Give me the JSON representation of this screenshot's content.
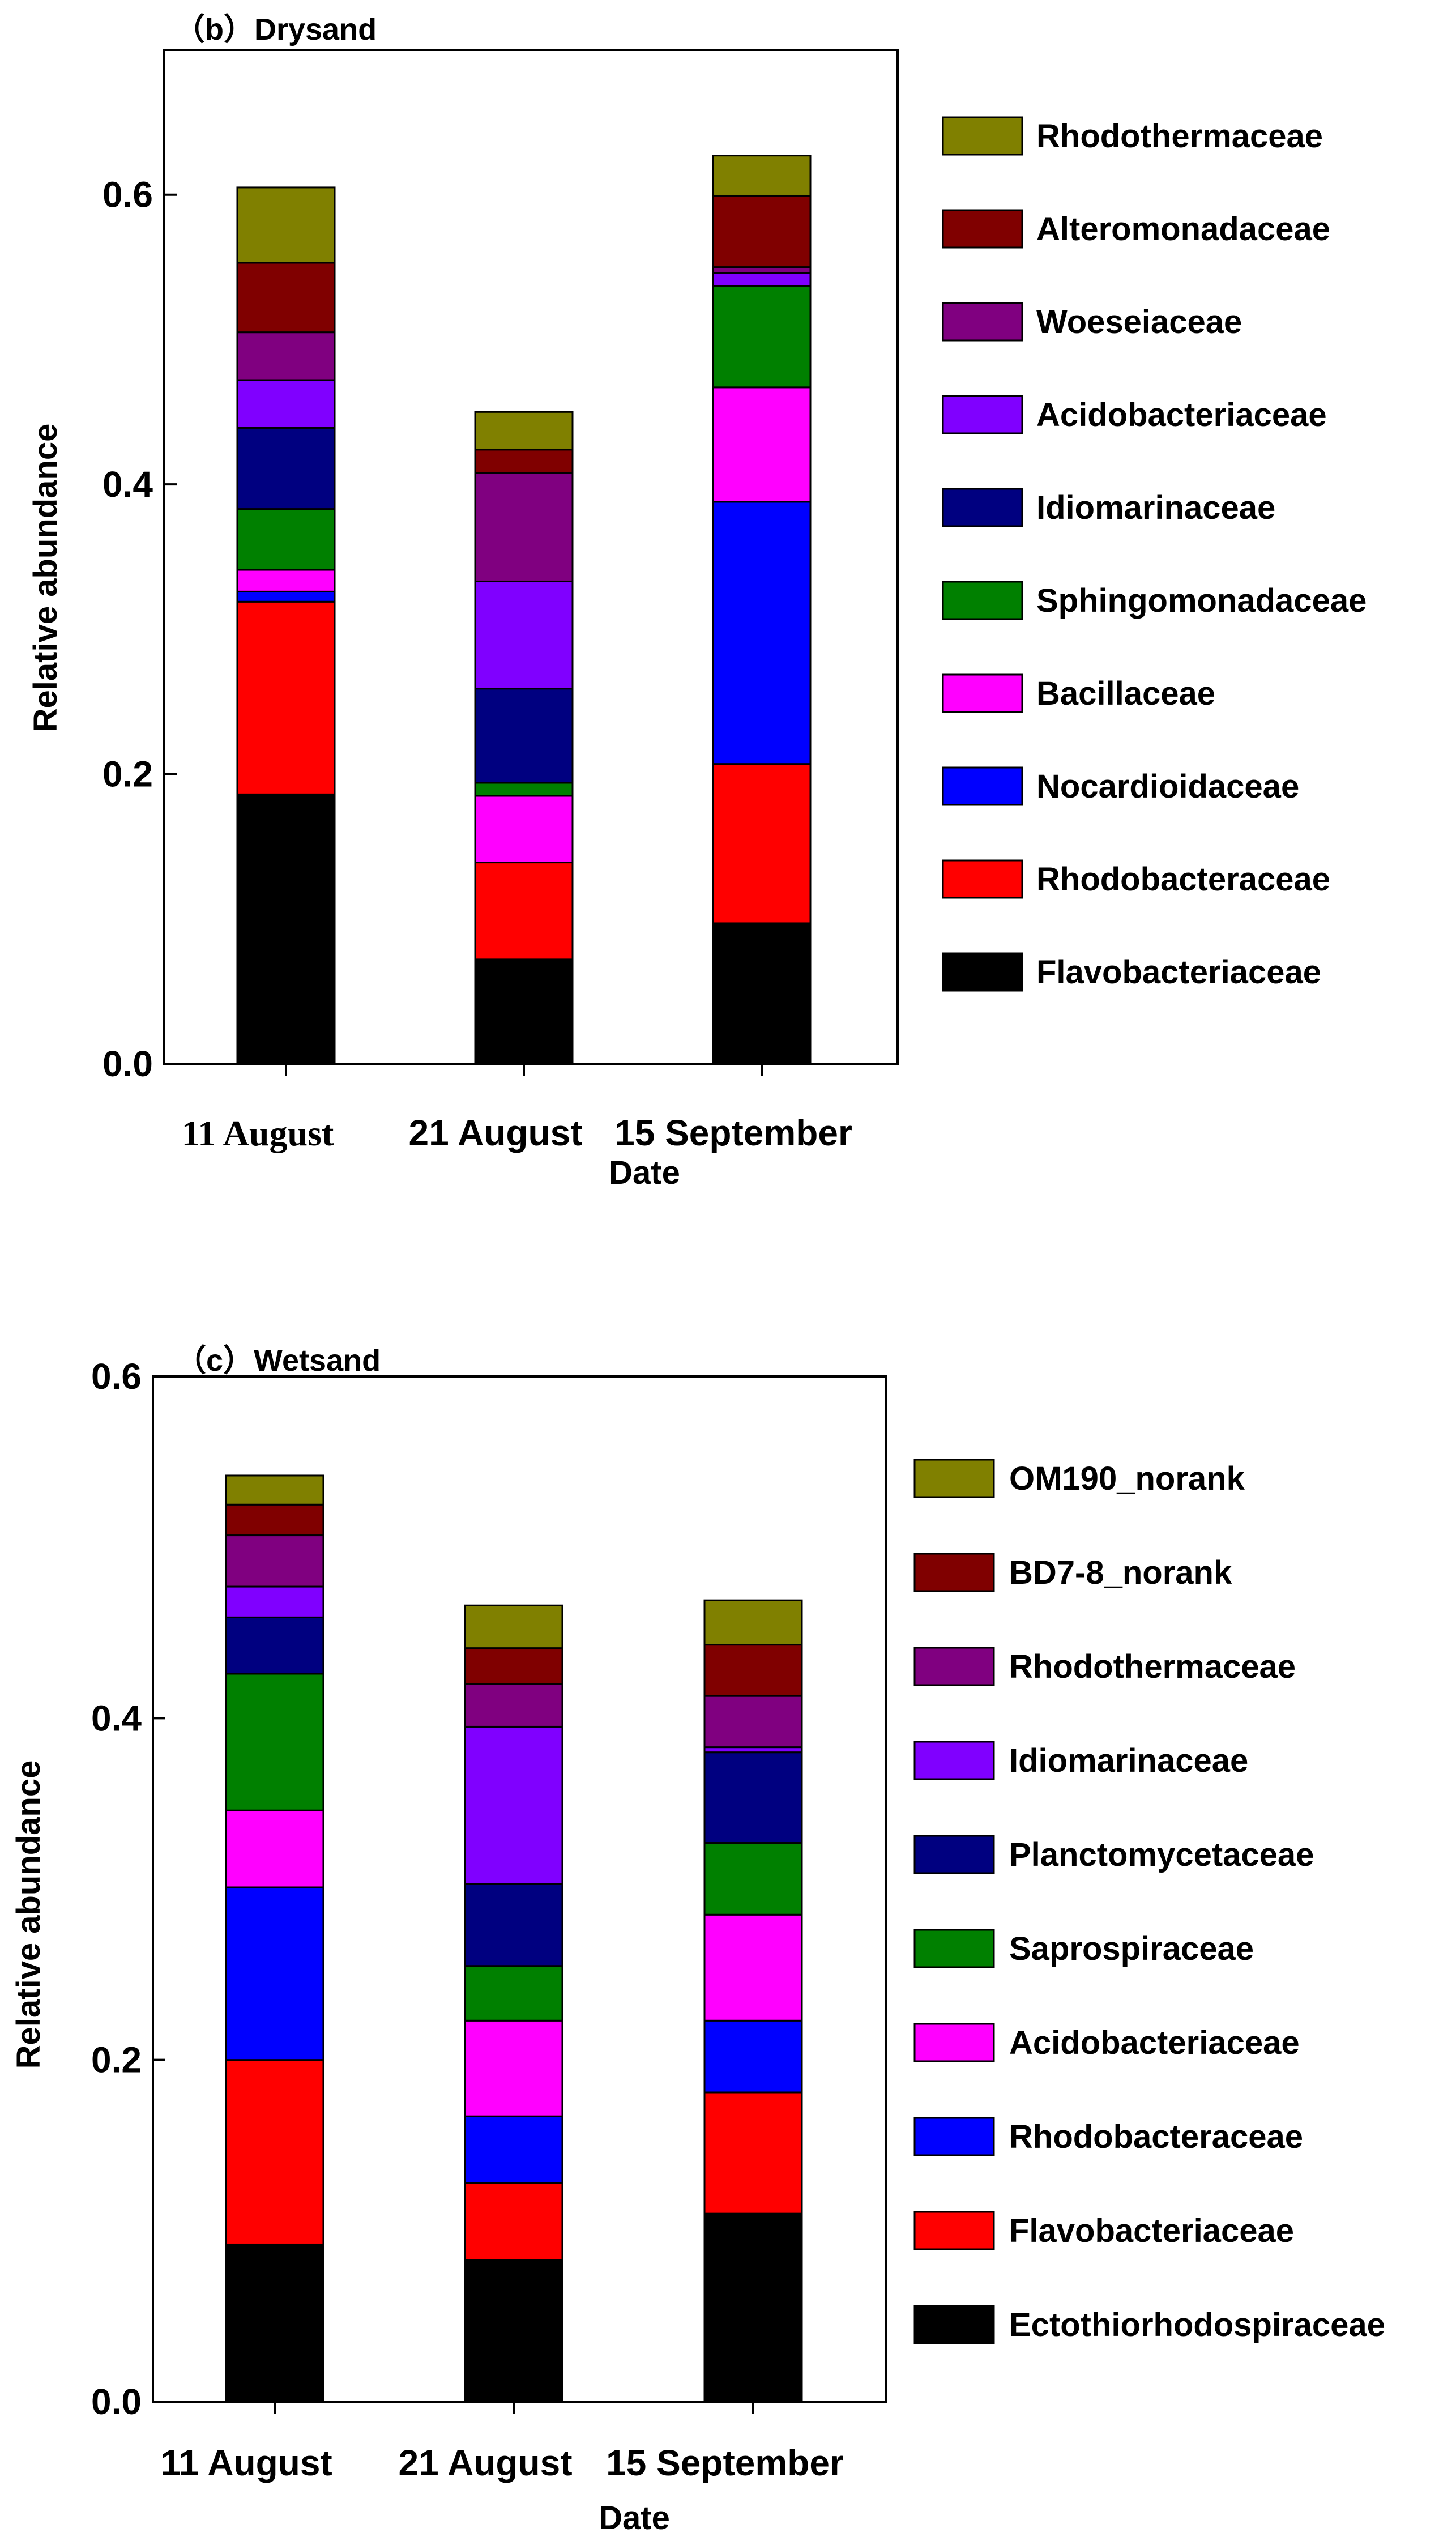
{
  "chart_data": [
    {
      "type": "bar",
      "stacked": true,
      "title": "（b）Drysand",
      "xlabel": "Date",
      "ylabel": "Relative abundance",
      "ylim": [
        0,
        0.7
      ],
      "yticks": [
        "0.0",
        "0.2",
        "0.4",
        "0.6"
      ],
      "categories": [
        "11 August",
        "21 August",
        "15 September"
      ],
      "series": [
        {
          "name": "Flavobacteriaceae",
          "color": "#000000",
          "values": [
            0.186,
            0.072,
            0.097
          ]
        },
        {
          "name": "Rhodobacteraceae",
          "color": "#ff0000",
          "values": [
            0.133,
            0.067,
            0.11
          ]
        },
        {
          "name": "Nocardioidaceae",
          "color": "#0000ff",
          "values": [
            0.007,
            0.0,
            0.181
          ]
        },
        {
          "name": "Bacillaceae",
          "color": "#ff00ff",
          "values": [
            0.015,
            0.046,
            0.079
          ]
        },
        {
          "name": "Sphingomonadaceae",
          "color": "#008000",
          "values": [
            0.042,
            0.009,
            0.07
          ]
        },
        {
          "name": "Idiomarinaceae",
          "color": "#000080",
          "values": [
            0.056,
            0.065,
            0.0
          ]
        },
        {
          "name": "Acidobacteriaceae",
          "color": "#8000ff",
          "values": [
            0.033,
            0.074,
            0.009
          ]
        },
        {
          "name": "Woeseiaceae",
          "color": "#800080",
          "values": [
            0.033,
            0.075,
            0.004
          ]
        },
        {
          "name": "Alteromonadaceae",
          "color": "#800000",
          "values": [
            0.048,
            0.016,
            0.049
          ]
        },
        {
          "name": "Rhodothermaceae",
          "color": "#808000",
          "values": [
            0.052,
            0.026,
            0.028
          ]
        }
      ]
    },
    {
      "type": "bar",
      "stacked": true,
      "title": "（c）Wetsand",
      "xlabel": "Date",
      "ylabel": "Relative abundance",
      "ylim": [
        0,
        0.6
      ],
      "yticks": [
        "0.0",
        "0.2",
        "0.4",
        "0.6"
      ],
      "categories": [
        "11 August",
        "21 August",
        "15 September"
      ],
      "series": [
        {
          "name": "Ectothiorhodospiraceae",
          "color": "#000000",
          "values": [
            0.092,
            0.083,
            0.11
          ]
        },
        {
          "name": "Flavobacteriaceae",
          "color": "#ff0000",
          "values": [
            0.108,
            0.045,
            0.071
          ]
        },
        {
          "name": "Rhodobacteraceae",
          "color": "#0000ff",
          "values": [
            0.101,
            0.039,
            0.042
          ]
        },
        {
          "name": "Acidobacteriaceae",
          "color": "#ff00ff",
          "values": [
            0.045,
            0.056,
            0.062
          ]
        },
        {
          "name": "Saprospiraceae",
          "color": "#008000",
          "values": [
            0.08,
            0.032,
            0.042
          ]
        },
        {
          "name": "Planctomycetaceae",
          "color": "#000080",
          "values": [
            0.033,
            0.048,
            0.053
          ]
        },
        {
          "name": "Idiomarinaceae",
          "color": "#8000ff",
          "values": [
            0.018,
            0.092,
            0.003
          ]
        },
        {
          "name": "Rhodothermaceae",
          "color": "#800080",
          "values": [
            0.03,
            0.025,
            0.03
          ]
        },
        {
          "name": "BD7-8_norank",
          "color": "#800000",
          "values": [
            0.018,
            0.021,
            0.03
          ]
        },
        {
          "name": "OM190_norank",
          "color": "#808000",
          "values": [
            0.017,
            0.025,
            0.026
          ]
        }
      ]
    }
  ]
}
